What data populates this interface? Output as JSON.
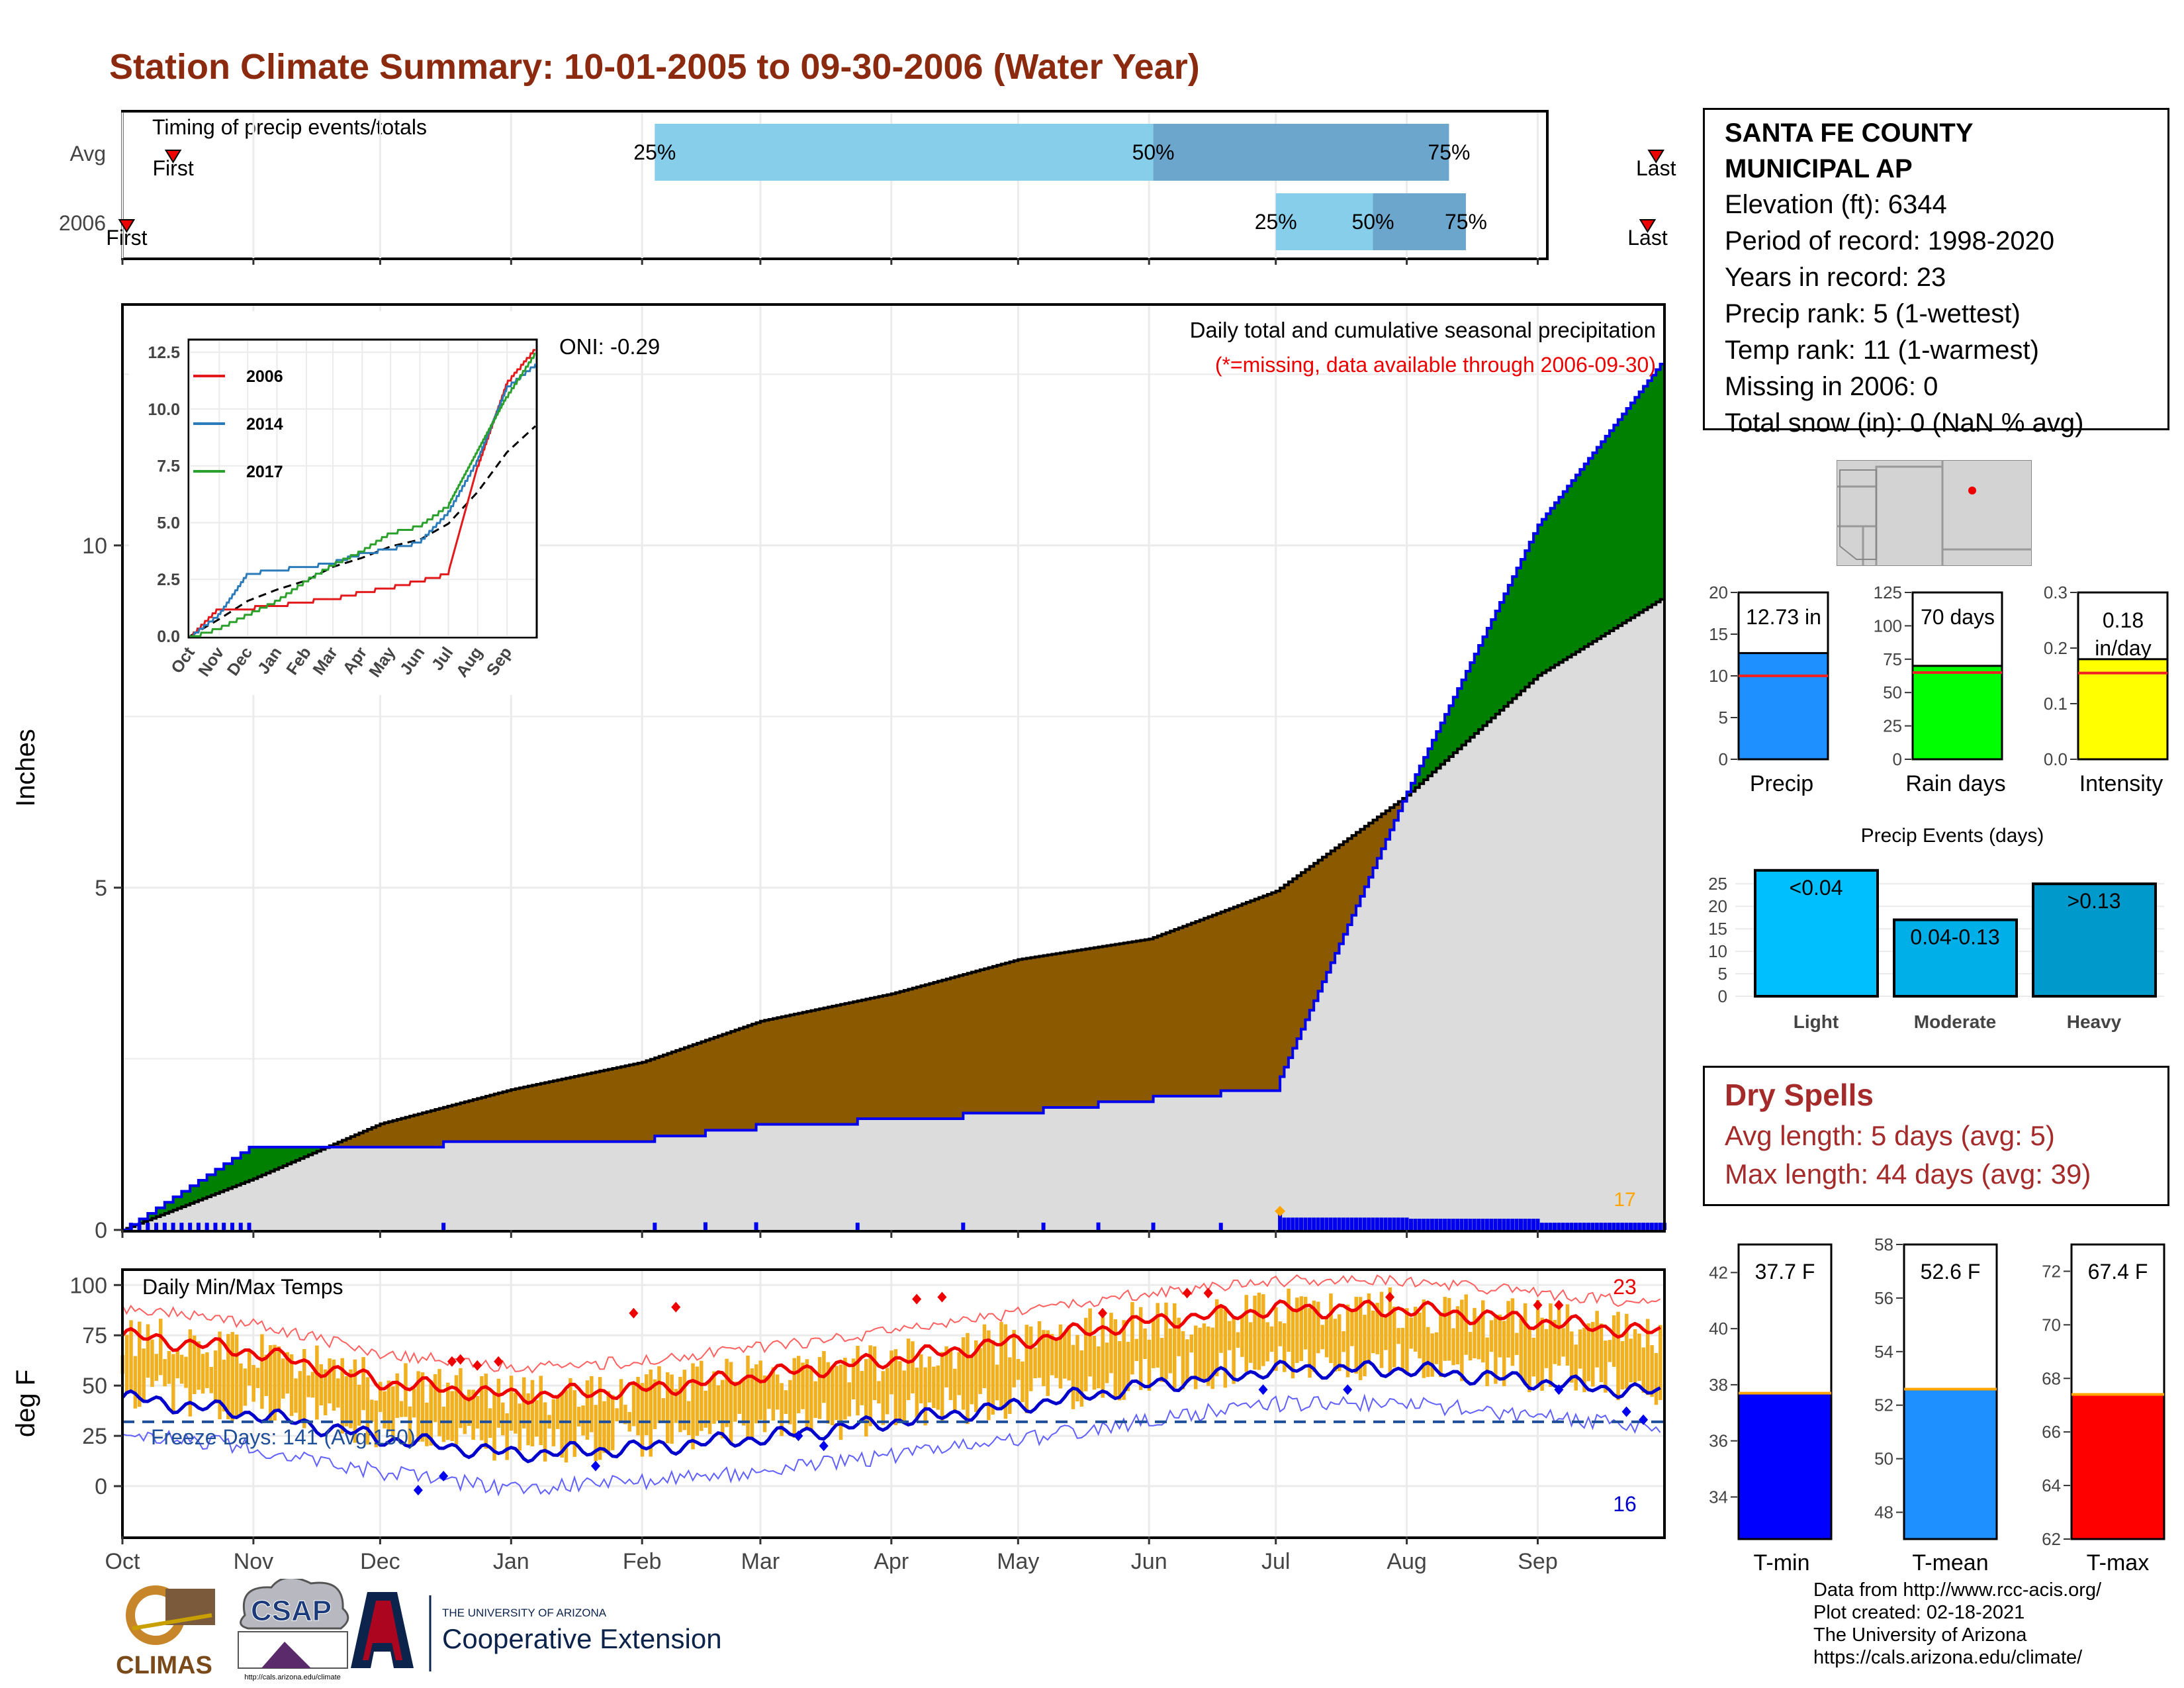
{
  "title": "Station Climate Summary: 10-01-2005 to 09-30-2006 (Water Year)",
  "timing": {
    "label": "Timing of precip events/totals",
    "rows": [
      {
        "name": "Avg",
        "first_label": "First",
        "last_label": "Last",
        "first_day": 12,
        "last_day": 363,
        "p25": 126,
        "p50": 244,
        "p75": 314
      },
      {
        "name": "2006",
        "first_label": "First",
        "last_label": "Last",
        "first_day": 1,
        "last_day": 361,
        "p25": 273,
        "p50": 296,
        "p75": 318
      }
    ],
    "pct_labels": [
      "25%",
      "50%",
      "75%"
    ]
  },
  "station": {
    "name_line1": "SANTA FE COUNTY",
    "name_line2": "MUNICIPAL AP",
    "rows": [
      "Elevation (ft): 6344",
      "Period of record: 1998-2020",
      "Years in record: 23",
      "Precip rank: 5 (1-wettest)",
      "Temp rank: 11 (1-warmest)",
      "Missing in 2006: 0",
      "Total snow (in): 0 (NaN % avg)"
    ]
  },
  "precip_panel": {
    "ylabel": "Inches",
    "header": "Daily total and cumulative seasonal precipitation",
    "missing_note": "(*=missing, data available through 2006-09-30)",
    "oni": "ONI: -0.29",
    "count_label": "17",
    "yticks": [
      "0",
      "5",
      "10"
    ]
  },
  "inset": {
    "yticks": [
      "0.0",
      "2.5",
      "5.0",
      "7.5",
      "10.0",
      "12.5"
    ],
    "xticks": [
      "Oct",
      "Nov",
      "Dec",
      "Jan",
      "Feb",
      "Mar",
      "Apr",
      "May",
      "Jun",
      "Jul",
      "Aug",
      "Sep"
    ],
    "legend": [
      {
        "name": "2006",
        "color": "#e31a1c"
      },
      {
        "name": "2014",
        "color": "#2b7bba"
      },
      {
        "name": "2017",
        "color": "#2ca02c"
      }
    ]
  },
  "temp_panel": {
    "ylabel": "deg F",
    "header": "Daily Min/Max Temps",
    "freeze": "Freeze Days: 141 (Avg:150)",
    "max_count": "23",
    "min_count": "16",
    "yticks": [
      "0",
      "25",
      "50",
      "75",
      "100"
    ]
  },
  "months": [
    "Oct",
    "Nov",
    "Dec",
    "Jan",
    "Feb",
    "Mar",
    "Apr",
    "May",
    "Jun",
    "Jul",
    "Aug",
    "Sep"
  ],
  "summary_bars": {
    "precip": {
      "label": "Precip",
      "text": "12.73 in",
      "value": 12.73,
      "avg": 10.0,
      "ymax": 20,
      "ticks": [
        "0",
        "5",
        "10",
        "15",
        "20"
      ],
      "color": "#1e90ff"
    },
    "rain_days": {
      "label": "Rain days",
      "text": "70 days",
      "value": 70,
      "avg": 65,
      "ymax": 125,
      "ticks": [
        "0",
        "25",
        "50",
        "75",
        "100",
        "125"
      ],
      "color": "#00ff00"
    },
    "intensity": {
      "label": "Intensity",
      "text_line1": "0.18",
      "text_line2": "in/day",
      "value": 0.18,
      "avg": 0.155,
      "ymax": 0.3,
      "ticks": [
        "0.0",
        "0.1",
        "0.2",
        "0.3"
      ],
      "color": "#ffff00"
    }
  },
  "events": {
    "title": "Precip Events (days)",
    "ticks": [
      "0",
      "5",
      "10",
      "15",
      "20",
      "25"
    ],
    "bars": [
      {
        "category": "Light",
        "text": "<0.04",
        "value": 28,
        "color": "#00bfff"
      },
      {
        "category": "Moderate",
        "text": "0.04-0.13",
        "value": 17,
        "color": "#00aee8"
      },
      {
        "category": "Heavy",
        "text": ">0.13",
        "value": 25,
        "color": "#0099cc"
      }
    ]
  },
  "dry_spells": {
    "title": "Dry Spells",
    "avg": "Avg length: 5 days (avg: 5)",
    "max": "Max length: 44 days (avg: 39)"
  },
  "temp_bars": {
    "tmin": {
      "label": "T-min",
      "text": "37.7 F",
      "value": 37.7,
      "avg": 37.7,
      "ymin": 32.5,
      "ymax": 43,
      "ticks": [
        "34",
        "36",
        "38",
        "40",
        "42"
      ],
      "color": "#0000ff"
    },
    "tmean": {
      "label": "T-mean",
      "text": "52.6 F",
      "value": 52.6,
      "avg": 52.6,
      "ymin": 47,
      "ymax": 58,
      "ticks": [
        "48",
        "50",
        "52",
        "54",
        "56",
        "58"
      ],
      "color": "#1e90ff"
    },
    "tmax": {
      "label": "T-max",
      "text": "67.4 F",
      "value": 67.4,
      "avg": 67.4,
      "ymin": 62,
      "ymax": 73,
      "ticks": [
        "62",
        "64",
        "66",
        "68",
        "70",
        "72"
      ],
      "color": "#ff0000"
    }
  },
  "logos": {
    "climas": "CLIMAS",
    "csap": "CSAP",
    "csap_url": "http://cals.arizona.edu/climate",
    "ua_line1": "THE UNIVERSITY OF ARIZONA",
    "ua_line2": "Cooperative Extension"
  },
  "credits": [
    "Data from http://www.rcc-acis.org/",
    "Plot created: 02-18-2021",
    "The University of Arizona",
    "https://cals.arizona.edu/climate/"
  ],
  "chart_data": [
    {
      "type": "area",
      "title": "Daily total and cumulative seasonal precipitation",
      "ylabel": "Inches",
      "ylim": [
        0,
        13.5
      ],
      "x": [
        "Oct",
        "Nov",
        "Dec",
        "Jan",
        "Feb",
        "Mar",
        "Apr",
        "May",
        "Jun",
        "Jul",
        "Aug",
        "Sep",
        "Sep-end"
      ],
      "series": [
        {
          "name": "2006 cumulative",
          "values": [
            0.0,
            1.25,
            1.28,
            1.3,
            1.35,
            1.55,
            1.65,
            1.75,
            1.95,
            2.1,
            6.4,
            10.3,
            12.73
          ]
        },
        {
          "name": "Average cumulative",
          "values": [
            0.0,
            0.75,
            1.55,
            2.05,
            2.45,
            3.05,
            3.45,
            3.95,
            4.25,
            4.95,
            6.35,
            8.1,
            9.25
          ]
        }
      ]
    },
    {
      "type": "line",
      "title": "Daily Min/Max Temps",
      "ylabel": "deg F",
      "ylim": [
        -25,
        107
      ],
      "x": [
        "Oct",
        "Nov",
        "Dec",
        "Jan",
        "Feb",
        "Mar",
        "Apr",
        "May",
        "Jun",
        "Jul",
        "Aug",
        "Sep",
        "Sep-end"
      ],
      "series": [
        {
          "name": "Avg max",
          "values": [
            75,
            67,
            52,
            45,
            48,
            55,
            63,
            72,
            82,
            88,
            88,
            82,
            76
          ]
        },
        {
          "name": "Avg min",
          "values": [
            44,
            36,
            24,
            16,
            19,
            24,
            32,
            40,
            50,
            58,
            58,
            52,
            46
          ]
        }
      ]
    },
    {
      "type": "line",
      "title": "",
      "ylim": [
        0,
        13
      ],
      "x": [
        "Oct",
        "Nov",
        "Dec",
        "Jan",
        "Feb",
        "Mar",
        "Apr",
        "May",
        "Jun",
        "Jul",
        "Aug",
        "Sep",
        "Sep-end"
      ],
      "series": [
        {
          "name": "2006",
          "values": [
            0,
            1.3,
            1.3,
            1.4,
            1.6,
            1.7,
            2.0,
            2.2,
            2.5,
            2.8,
            7.5,
            11.2,
            12.7
          ]
        },
        {
          "name": "2014",
          "values": [
            0,
            1.0,
            2.8,
            3.0,
            3.1,
            3.3,
            3.7,
            3.9,
            4.2,
            5.5,
            7.8,
            11.0,
            12.0
          ]
        },
        {
          "name": "2017",
          "values": [
            0,
            0.4,
            1.0,
            1.6,
            2.5,
            3.2,
            3.8,
            4.6,
            4.9,
            5.8,
            8.2,
            10.6,
            12.5
          ]
        }
      ]
    },
    {
      "type": "bar",
      "title": "Precip Events (days)",
      "categories": [
        "Light",
        "Moderate",
        "Heavy"
      ],
      "values": [
        28,
        17,
        25
      ],
      "ylim": [
        0,
        29
      ]
    }
  ]
}
